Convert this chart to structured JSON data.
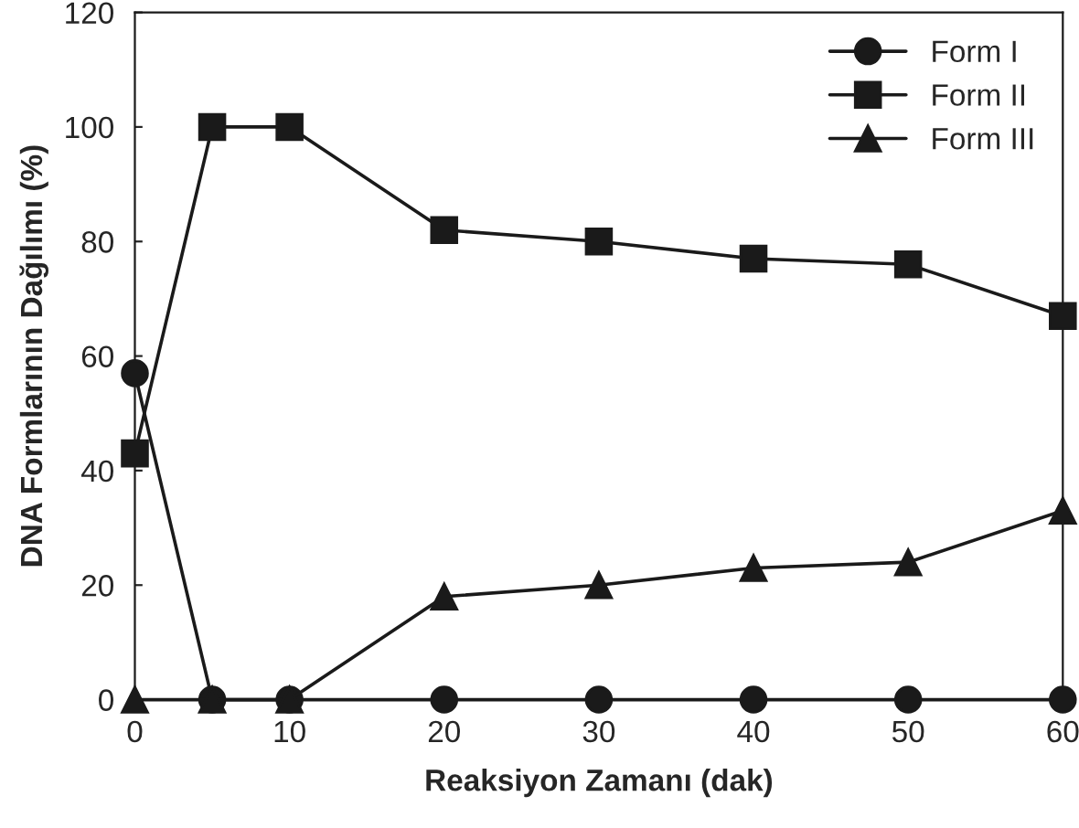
{
  "chart_data": {
    "type": "line",
    "xlabel": "Reaksiyon Zamanı (dak)",
    "ylabel": "DNA Formlarının Dağılımı (%)",
    "x": [
      0,
      5,
      10,
      20,
      30,
      40,
      50,
      60
    ],
    "series": [
      {
        "name": "Form I",
        "color": "#1a1a1a",
        "marker": "circle",
        "values": [
          57,
          0,
          0,
          0,
          0,
          0,
          0,
          0
        ]
      },
      {
        "name": "Form II",
        "color": "#1a1a1a",
        "marker": "square",
        "values": [
          43,
          100,
          100,
          82,
          80,
          77,
          76,
          67
        ]
      },
      {
        "name": "Form III",
        "color": "#1a1a1a",
        "marker": "triangle",
        "values": [
          0,
          0,
          0,
          18,
          20,
          23,
          24,
          33
        ]
      }
    ],
    "xlim": [
      0,
      60
    ],
    "xticks": [
      0,
      10,
      20,
      30,
      40,
      50,
      60
    ],
    "ylim": [
      0,
      120
    ],
    "yticks": [
      0,
      20,
      40,
      60,
      80,
      100,
      120
    ],
    "grid": false,
    "legend": "top right",
    "line_style": "solid"
  }
}
